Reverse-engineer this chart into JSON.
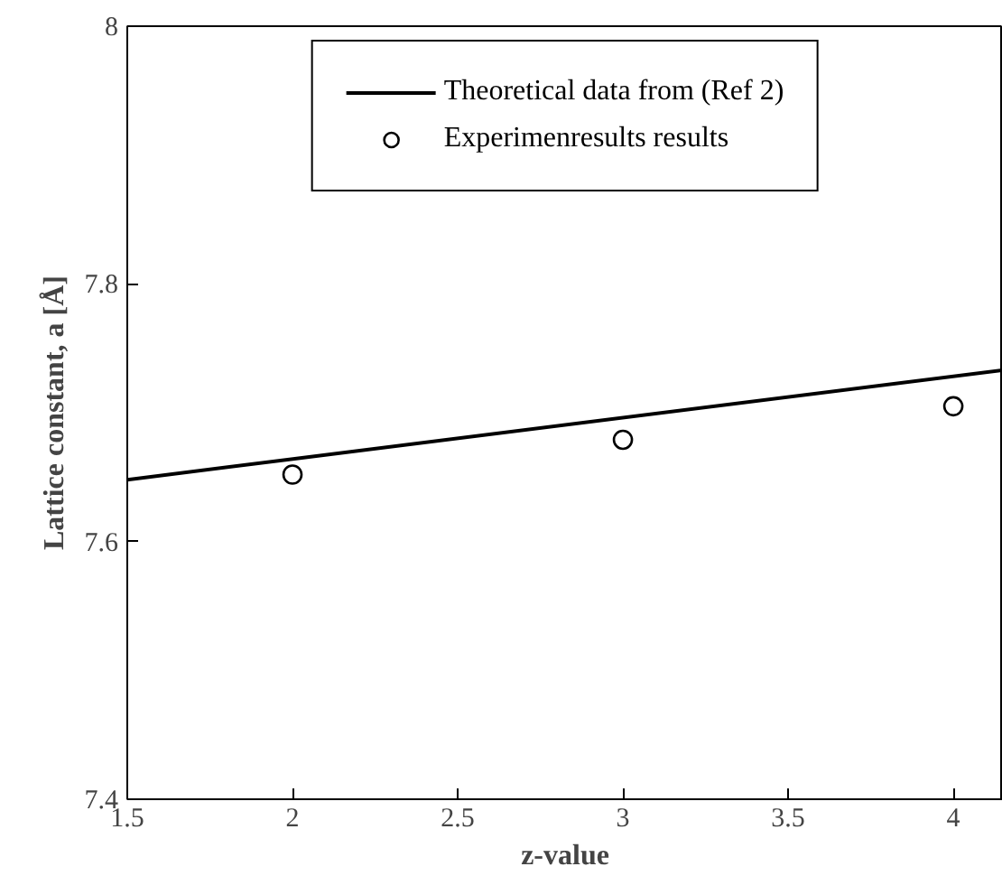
{
  "chart_data": {
    "type": "line",
    "xlabel": "z-value",
    "ylabel": "Lattice constant, a [Å]",
    "xlim": [
      1.5,
      4.15
    ],
    "ylim": [
      7.4,
      8
    ],
    "xticks": [
      1.5,
      2,
      2.5,
      3,
      3.5,
      4
    ],
    "yticks": [
      7.4,
      7.6,
      7.8,
      8
    ],
    "grid": false,
    "legend": "top",
    "series": [
      {
        "name": "Theoretical data from (Ref 2)",
        "color": "#000000",
        "x": [
          1.5,
          4.15
        ],
        "values": [
          7.648,
          7.733
        ],
        "marker": "none",
        "line_style": "solid"
      },
      {
        "name": "Experimenresults results",
        "type": "scatter",
        "color": "#000000",
        "x": [
          2,
          3,
          4
        ],
        "values": [
          7.652,
          7.679,
          7.705
        ],
        "marker": "circle"
      }
    ]
  }
}
